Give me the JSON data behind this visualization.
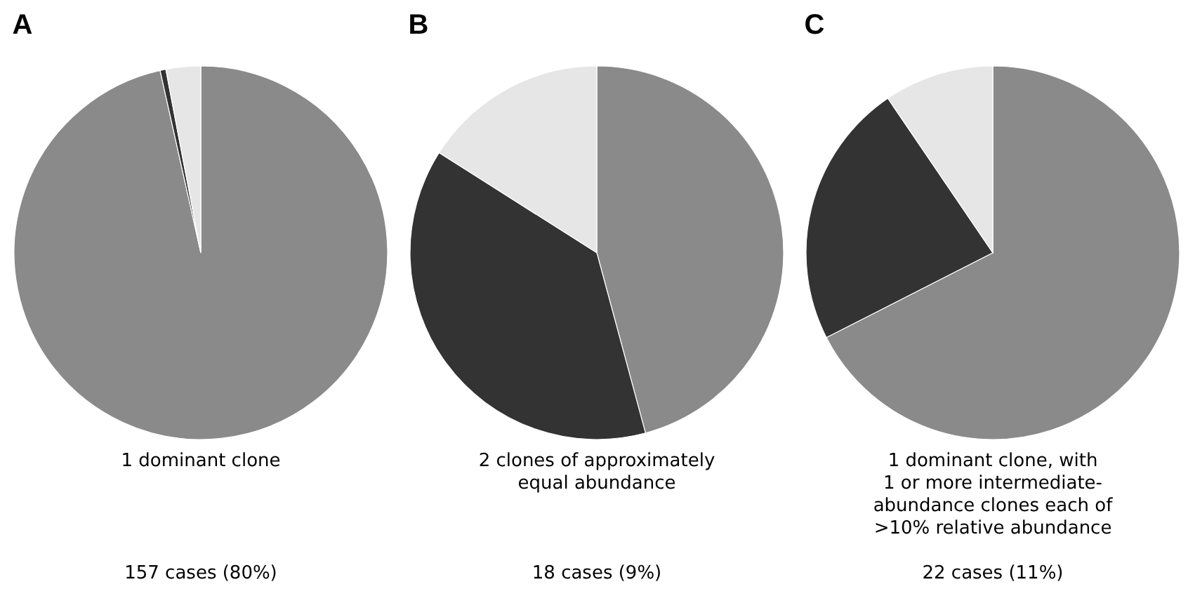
{
  "chart_data": [
    {
      "type": "pie",
      "title": "A",
      "categories": [
        null,
        null,
        null
      ],
      "values": [
        96.5,
        0.5,
        3
      ],
      "colors": [
        "#8a8a8a",
        "#333333",
        "#e6e6e6"
      ],
      "annotations": [
        "1 dominant clone",
        "157 cases (80%)"
      ]
    },
    {
      "type": "pie",
      "title": "B",
      "categories": [
        null,
        null,
        null
      ],
      "values": [
        45.8,
        38.2,
        16
      ],
      "colors": [
        "#8a8a8a",
        "#333333",
        "#e6e6e6"
      ],
      "annotations": [
        "2 clones of approximately\nequal abundance",
        "18 cases (9%)"
      ]
    },
    {
      "type": "pie",
      "title": "C",
      "categories": [
        null,
        null,
        null
      ],
      "values": [
        67.5,
        23,
        9.5
      ],
      "colors": [
        "#8a8a8a",
        "#333333",
        "#e6e6e6"
      ],
      "annotations": [
        "1 dominant clone, with\n1 or more intermediate-\nabundance clones each of\n>10% relative abundance",
        "22 cases (11%)"
      ]
    }
  ]
}
